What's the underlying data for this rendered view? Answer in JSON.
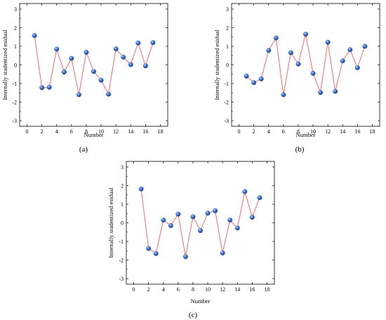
{
  "chart_data": [
    {
      "type": "line",
      "panel_label": "(a)",
      "xlabel": "Number",
      "ylabel": "Internally studentized esidual",
      "xlim": [
        -1,
        19
      ],
      "ylim": [
        -3.3,
        3.3
      ],
      "xticks": [
        0,
        2,
        4,
        6,
        8,
        10,
        12,
        14,
        16,
        18
      ],
      "yticks": [
        -3,
        -2,
        -1,
        0,
        1,
        2,
        3
      ],
      "line_color": "#f26b6b",
      "marker_color": "#2f62c8",
      "grid": false,
      "series": [
        {
          "x": [
            1,
            2,
            3,
            4,
            5,
            6,
            7,
            8,
            9,
            10,
            11,
            12,
            13,
            14,
            15,
            16,
            17
          ],
          "y": [
            1.58,
            -1.22,
            -1.2,
            0.85,
            -0.38,
            0.35,
            -1.6,
            0.68,
            -0.35,
            -0.82,
            -1.57,
            0.86,
            0.42,
            0.02,
            1.18,
            -0.05,
            1.2
          ]
        }
      ]
    },
    {
      "type": "line",
      "panel_label": "(b)",
      "xlabel": "Number",
      "ylabel": "Internally studentized esidual",
      "xlim": [
        -1,
        19
      ],
      "ylim": [
        -3.3,
        3.3
      ],
      "xticks": [
        0,
        2,
        4,
        6,
        8,
        10,
        12,
        14,
        16,
        18
      ],
      "yticks": [
        -3,
        -2,
        -1,
        0,
        1,
        2,
        3
      ],
      "line_color": "#f26b6b",
      "marker_color": "#2f62c8",
      "grid": false,
      "series": [
        {
          "x": [
            1,
            2,
            3,
            4,
            5,
            6,
            7,
            8,
            9,
            10,
            11,
            12,
            13,
            14,
            15,
            16,
            17
          ],
          "y": [
            -0.6,
            -0.95,
            -0.75,
            0.78,
            1.45,
            -1.6,
            0.66,
            0.05,
            1.65,
            -0.45,
            -1.48,
            1.22,
            -1.42,
            0.22,
            0.82,
            -0.15,
            1.0
          ]
        }
      ]
    },
    {
      "type": "line",
      "panel_label": "(c)",
      "xlabel": "Number",
      "ylabel": "Internally studentized esidual",
      "xlim": [
        -1,
        19
      ],
      "ylim": [
        -3.3,
        3.3
      ],
      "xticks": [
        0,
        2,
        4,
        6,
        8,
        10,
        12,
        14,
        16,
        18
      ],
      "yticks": [
        -3,
        -2,
        -1,
        0,
        1,
        2,
        3
      ],
      "line_color": "#f26b6b",
      "marker_color": "#2f62c8",
      "grid": false,
      "series": [
        {
          "x": [
            1,
            2,
            3,
            4,
            5,
            6,
            7,
            8,
            9,
            10,
            11,
            12,
            13,
            14,
            15,
            16,
            17
          ],
          "y": [
            1.82,
            -1.38,
            -1.65,
            0.15,
            -0.15,
            0.47,
            -1.82,
            0.33,
            -0.42,
            0.52,
            0.65,
            -1.62,
            0.15,
            -0.28,
            1.68,
            0.3,
            1.35
          ]
        }
      ]
    }
  ]
}
